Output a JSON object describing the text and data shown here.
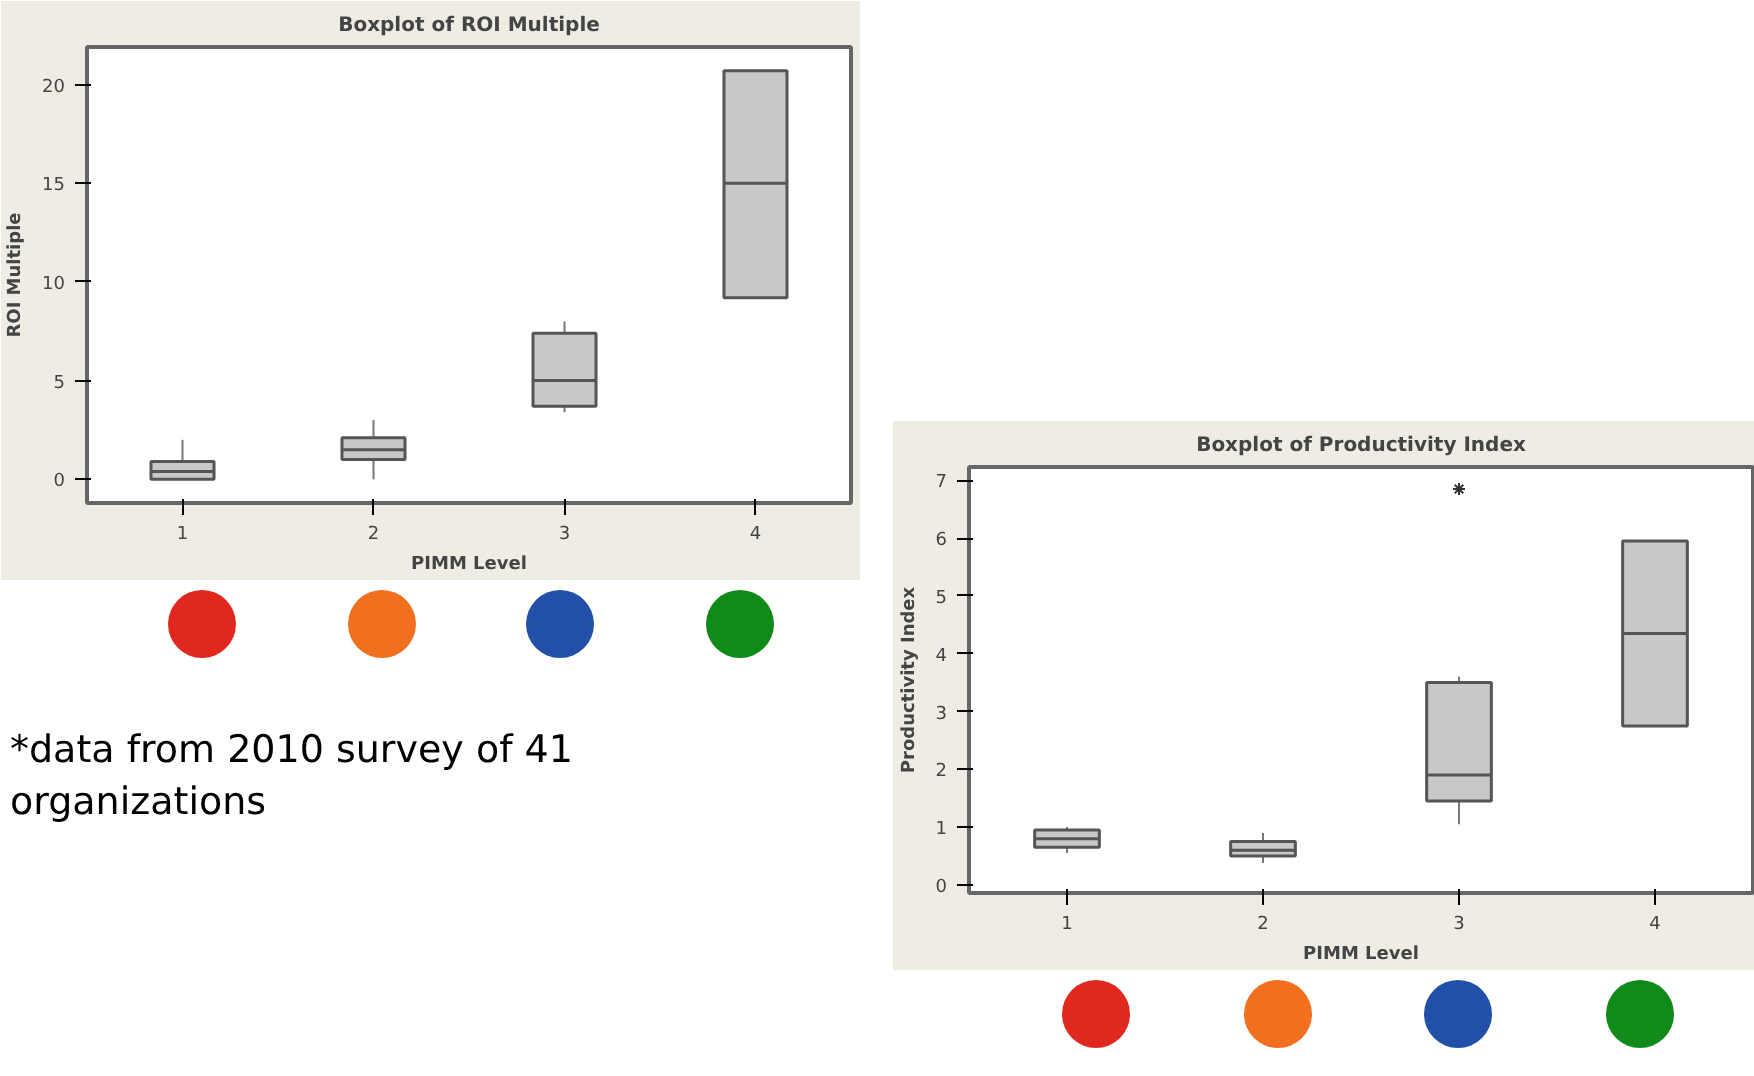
{
  "chart_data": [
    {
      "type": "box",
      "title": "Boxplot of ROI Multiple",
      "xlabel": "PIMM Level",
      "ylabel": "ROI Multiple",
      "categories": [
        "1",
        "2",
        "3",
        "4"
      ],
      "ylim": [
        -1.2,
        21.9
      ],
      "yticks": [
        0,
        5,
        10,
        15,
        20
      ],
      "series": [
        {
          "color": "#c8c8c8",
          "boxes": [
            {
              "low": 0,
              "q1": 0,
              "median": 0.4,
              "q3": 0.9,
              "high": 2
            },
            {
              "low": 0,
              "q1": 1,
              "median": 1.5,
              "q3": 2.1,
              "high": 3
            },
            {
              "low": 3.4,
              "q1": 3.7,
              "median": 5,
              "q3": 7.4,
              "high": 8
            },
            {
              "low": 9.2,
              "q1": 9.2,
              "median": 15,
              "q3": 20.7,
              "high": 20.7
            }
          ]
        }
      ],
      "annotations": [
        "*data from 2010 survey of 41 organizations"
      ]
    },
    {
      "type": "box",
      "title": "Boxplot of Productivity Index",
      "xlabel": "PIMM Level",
      "ylabel": "Productivity Index",
      "categories": [
        "1",
        "2",
        "3",
        "4"
      ],
      "ylim": [
        -0.14,
        7.23
      ],
      "yticks": [
        0,
        1,
        2,
        3,
        4,
        5,
        6,
        7
      ],
      "series": [
        {
          "color": "#c8c8c8",
          "boxes": [
            {
              "low": 0.55,
              "q1": 0.65,
              "median": 0.8,
              "q3": 0.95,
              "high": 1.0
            },
            {
              "low": 0.38,
              "q1": 0.5,
              "median": 0.6,
              "q3": 0.75,
              "high": 0.9
            },
            {
              "low": 1.05,
              "q1": 1.45,
              "median": 1.9,
              "q3": 3.5,
              "high": 3.6,
              "outliers": [
                6.85
              ]
            },
            {
              "low": 2.75,
              "q1": 2.75,
              "median": 4.35,
              "q3": 5.95,
              "high": 5.95
            }
          ]
        }
      ]
    }
  ]
}
